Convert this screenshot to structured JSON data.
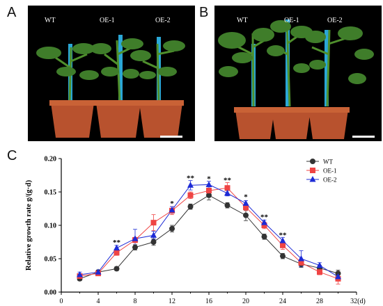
{
  "panels": {
    "a": {
      "letter": "A",
      "labels": [
        "WT",
        "OE-1",
        "OE-2"
      ]
    },
    "b": {
      "letter": "B",
      "labels": [
        "WT",
        "OE-1",
        "OE-2"
      ]
    },
    "c": {
      "letter": "C"
    }
  },
  "colors": {
    "WT": "#333333",
    "OE-1": "#ef4444",
    "OE-2": "#1d2bd6",
    "photo_bg": "#000000",
    "pot": "#b8522e",
    "leaf": "#3f7d2a",
    "stake": "#2aa7d6"
  },
  "chart_data": {
    "type": "line",
    "title": "",
    "xlabel": "",
    "x_unit_label": "32(d)",
    "ylabel": "Relative growth rate g/(g·d)",
    "xlim": [
      0,
      32
    ],
    "ylim": [
      0,
      0.2
    ],
    "x_ticks": [
      "0",
      "4",
      "8",
      "12",
      "16",
      "20",
      "24",
      "28"
    ],
    "y_ticks": [
      "0.00",
      "0.05",
      "0.10",
      "0.15",
      "0.20"
    ],
    "x": [
      2,
      4,
      6,
      8,
      10,
      12,
      14,
      16,
      18,
      20,
      22,
      24,
      26,
      28,
      30
    ],
    "series": [
      {
        "name": "WT",
        "marker": "circle",
        "values": [
          0.02,
          0.03,
          0.035,
          0.067,
          0.075,
          0.095,
          0.128,
          0.145,
          0.13,
          0.115,
          0.083,
          0.054,
          0.042,
          0.036,
          0.028
        ],
        "errors": [
          0.003,
          0.003,
          0.003,
          0.004,
          0.005,
          0.005,
          0.004,
          0.007,
          0.004,
          0.008,
          0.004,
          0.004,
          0.005,
          0.004,
          0.005
        ]
      },
      {
        "name": "OE-1",
        "marker": "square",
        "values": [
          0.024,
          0.028,
          0.059,
          0.078,
          0.104,
          0.122,
          0.145,
          0.152,
          0.156,
          0.127,
          0.1,
          0.07,
          0.044,
          0.03,
          0.02
        ],
        "errors": [
          0.003,
          0.003,
          0.004,
          0.004,
          0.012,
          0.006,
          0.005,
          0.006,
          0.008,
          0.005,
          0.005,
          0.006,
          0.005,
          0.004,
          0.008
        ]
      },
      {
        "name": "OE-2",
        "marker": "triangle",
        "values": [
          0.026,
          0.03,
          0.066,
          0.08,
          0.085,
          0.123,
          0.16,
          0.161,
          0.148,
          0.133,
          0.104,
          0.077,
          0.05,
          0.04,
          0.023
        ],
        "errors": [
          0.004,
          0.003,
          0.004,
          0.014,
          0.006,
          0.005,
          0.007,
          0.005,
          0.004,
          0.004,
          0.004,
          0.005,
          0.012,
          0.004,
          0.005
        ]
      }
    ],
    "significance": [
      {
        "x": 6,
        "text": "**",
        "y": 0.071
      },
      {
        "x": 12,
        "text": "*",
        "y": 0.129
      },
      {
        "x": 14,
        "text": "**",
        "y": 0.167
      },
      {
        "x": 16,
        "text": "*",
        "y": 0.166
      },
      {
        "x": 18,
        "text": "**",
        "y": 0.164
      },
      {
        "x": 20,
        "text": "*",
        "y": 0.139
      },
      {
        "x": 22,
        "text": "**",
        "y": 0.109
      },
      {
        "x": 24,
        "text": "**",
        "y": 0.082
      }
    ],
    "legend_position": "top-right",
    "grid": false
  }
}
